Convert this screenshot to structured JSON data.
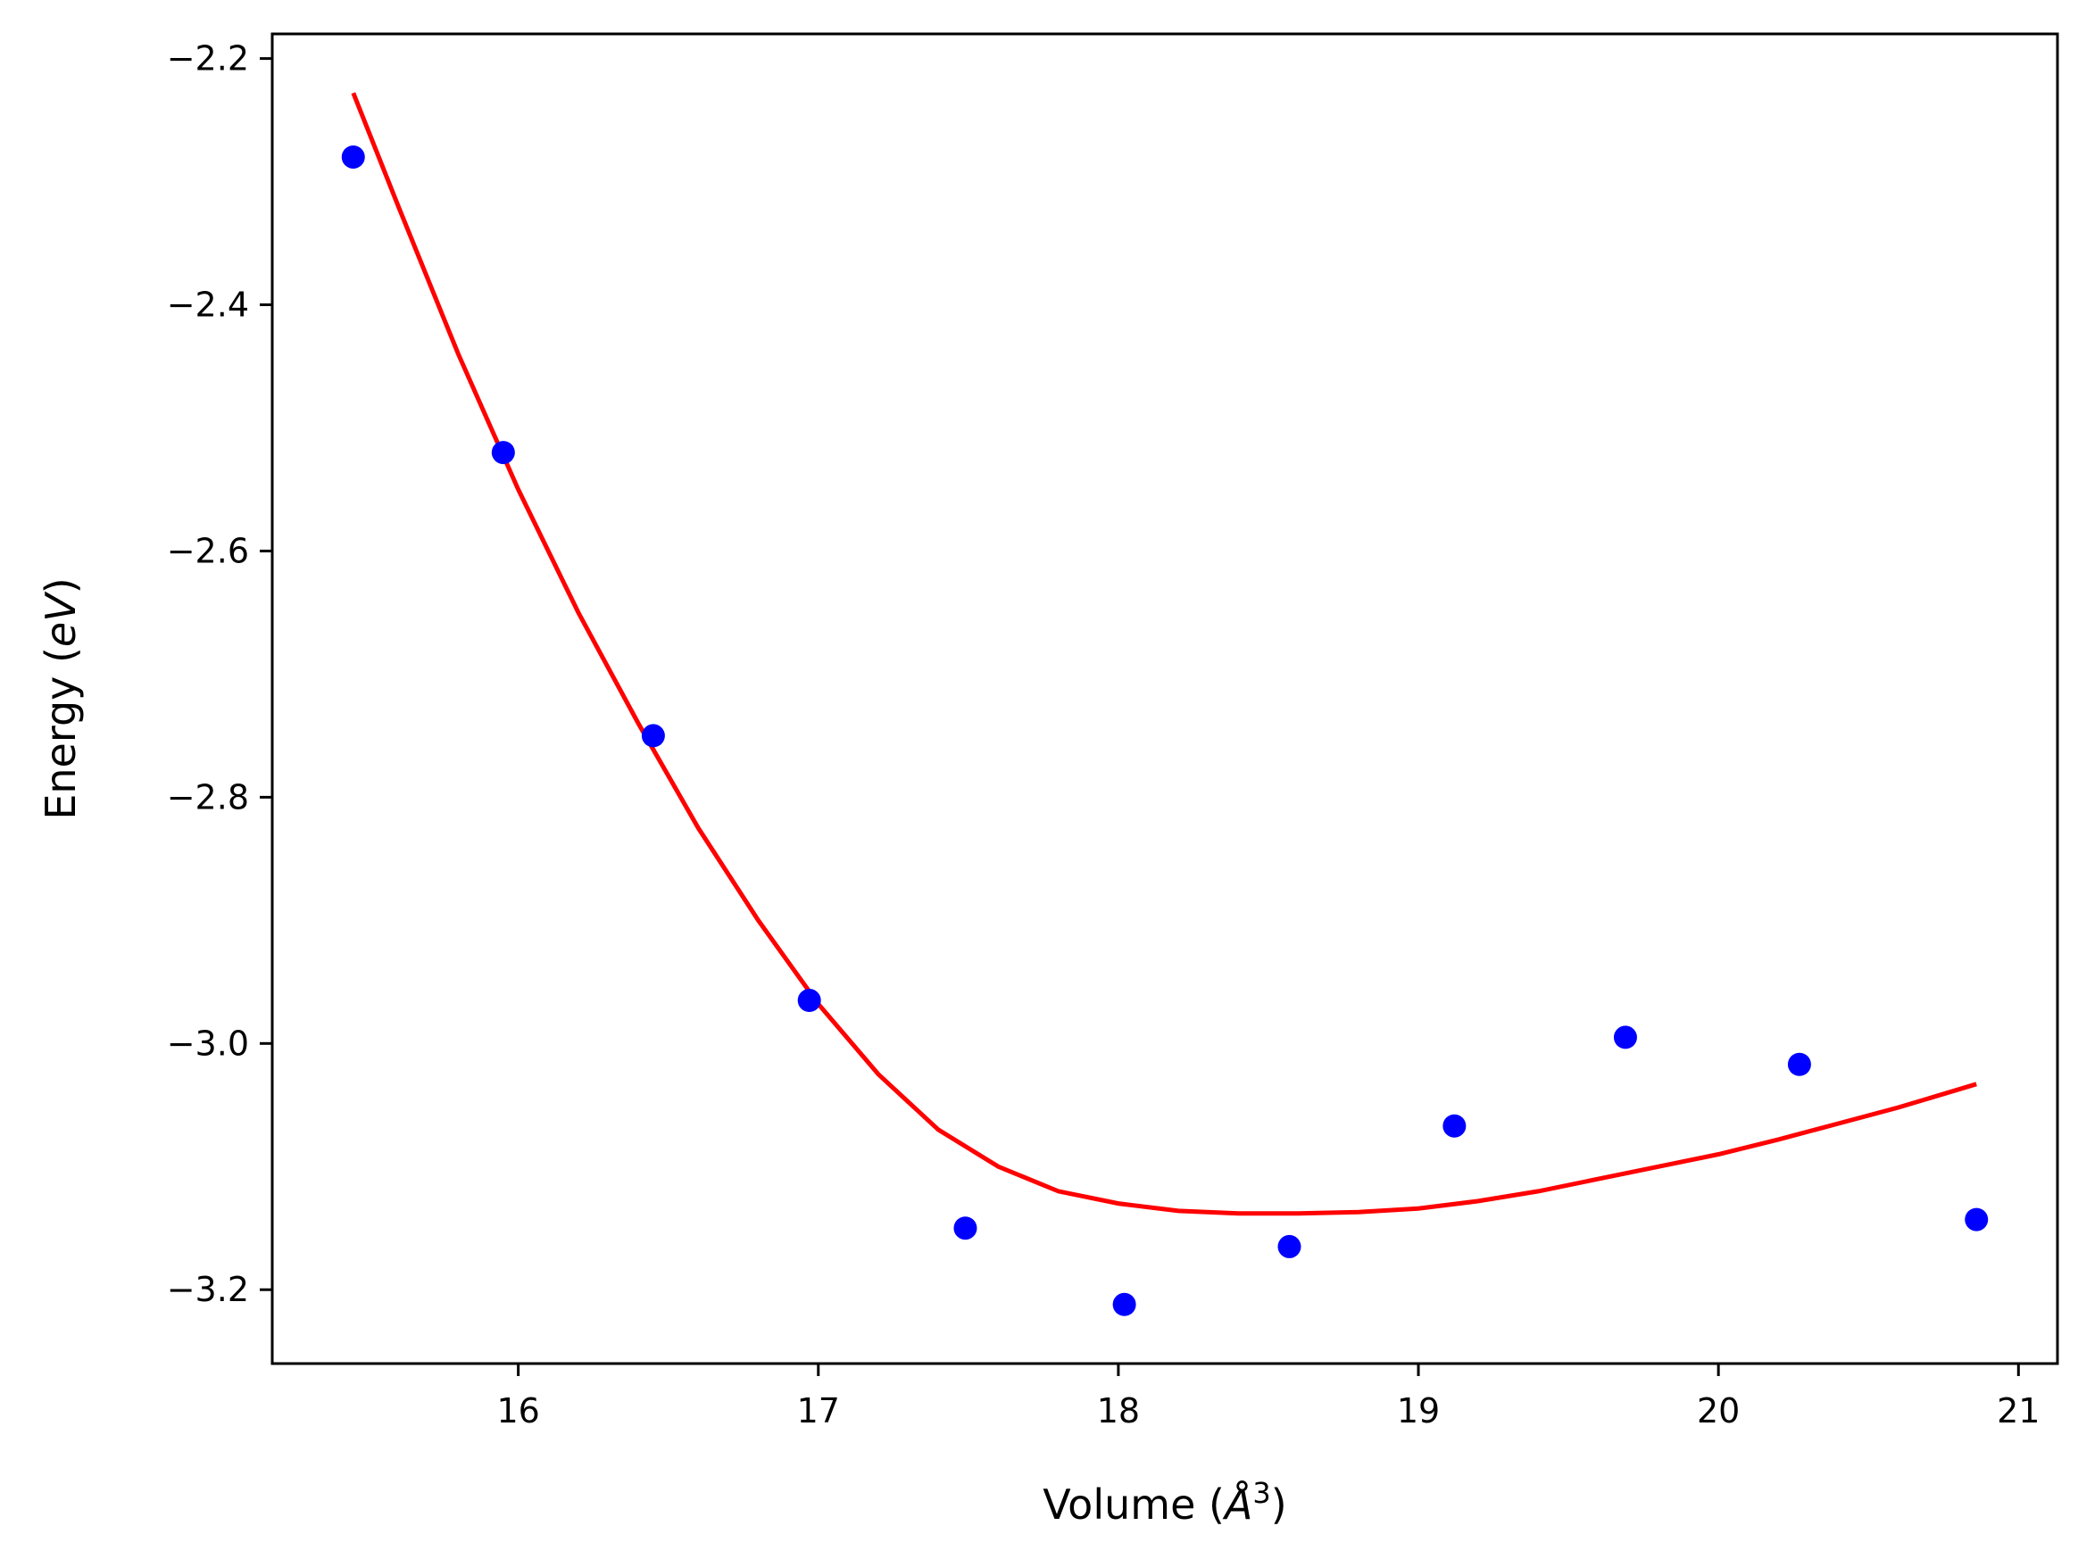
{
  "chart_data": {
    "type": "scatter",
    "title": "",
    "xlabel": {
      "main": "Volume (",
      "symbol": "Å",
      "sup": "3",
      "close": ")"
    },
    "ylabel": {
      "main": "Energy (",
      "italic": "eV",
      "close": ")"
    },
    "xlim": [
      15.18,
      21.13
    ],
    "ylim": [
      -3.26,
      -2.18
    ],
    "xticks": [
      16,
      17,
      18,
      19,
      20,
      21
    ],
    "yticks": [
      -2.2,
      -2.4,
      -2.6,
      -2.8,
      -3.0,
      -3.2
    ],
    "xtick_labels": [
      "16",
      "17",
      "18",
      "19",
      "20",
      "21"
    ],
    "ytick_labels": [
      "−2.2",
      "−2.4",
      "−2.6",
      "−2.8",
      "−3.0",
      "−3.2"
    ],
    "grid": false,
    "series": [
      {
        "kind": "points",
        "color": "#0000ff",
        "x": [
          15.45,
          15.95,
          16.45,
          16.97,
          17.49,
          18.02,
          18.57,
          19.12,
          19.69,
          20.27,
          20.86
        ],
        "y": [
          -2.28,
          -2.52,
          -2.75,
          -2.965,
          -3.15,
          -3.212,
          -3.165,
          -3.067,
          -2.995,
          -3.017,
          -3.143
        ]
      },
      {
        "kind": "fit-line",
        "color": "#ff0000",
        "x": [
          15.45,
          15.6,
          15.8,
          16.0,
          16.2,
          16.4,
          16.6,
          16.8,
          17.0,
          17.2,
          17.4,
          17.6,
          17.8,
          18.0,
          18.2,
          18.4,
          18.6,
          18.8,
          19.0,
          19.2,
          19.4,
          19.6,
          19.8,
          20.0,
          20.2,
          20.4,
          20.6,
          20.86
        ],
        "y": [
          -2.228,
          -2.32,
          -2.44,
          -2.55,
          -2.65,
          -2.74,
          -2.825,
          -2.9,
          -2.968,
          -3.025,
          -3.07,
          -3.1,
          -3.12,
          -3.13,
          -3.136,
          -3.138,
          -3.138,
          -3.137,
          -3.134,
          -3.128,
          -3.12,
          -3.11,
          -3.1,
          -3.09,
          -3.078,
          -3.065,
          -3.052,
          -3.033
        ]
      }
    ]
  }
}
